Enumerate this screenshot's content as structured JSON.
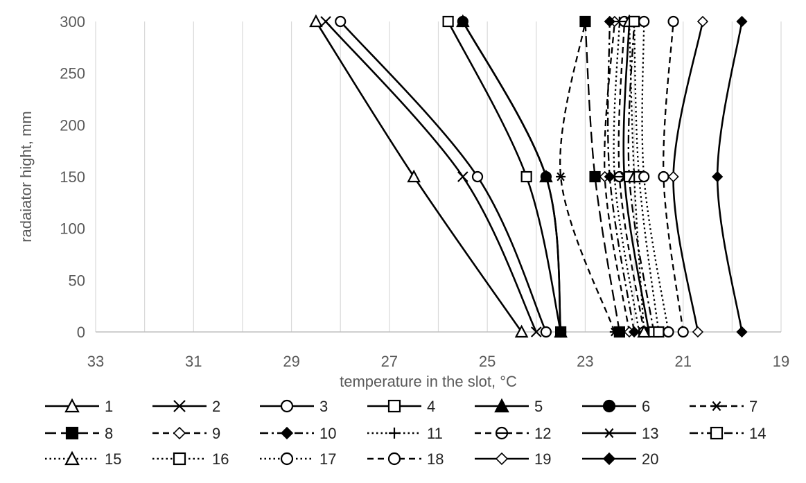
{
  "chart_data": {
    "type": "line",
    "xlabel": "temperature in the slot, °C",
    "ylabel": "radaiator hight, mm",
    "x_axis_reversed": true,
    "xlim": [
      19,
      33
    ],
    "ylim": [
      0,
      300
    ],
    "x_ticks": [
      "33",
      "31",
      "29",
      "27",
      "25",
      "23",
      "21",
      "19"
    ],
    "y_ticks": [
      "0",
      "50",
      "100",
      "150",
      "200",
      "250",
      "300"
    ],
    "grid": "vertical",
    "legend_position": "bottom",
    "y": [
      0,
      150,
      300
    ],
    "series": [
      {
        "name": "1",
        "x": [
          24.3,
          26.5,
          28.5
        ],
        "marker": "triangle-open",
        "line": "solid"
      },
      {
        "name": "2",
        "x": [
          24.0,
          25.5,
          28.3
        ],
        "marker": "x",
        "line": "solid"
      },
      {
        "name": "3",
        "x": [
          23.8,
          25.2,
          28.0
        ],
        "marker": "circle-open",
        "line": "solid"
      },
      {
        "name": "4",
        "x": [
          23.5,
          24.2,
          25.8
        ],
        "marker": "square-open",
        "line": "solid"
      },
      {
        "name": "5",
        "x": [
          23.5,
          23.8,
          25.5
        ],
        "marker": "triangle-filled",
        "line": "solid"
      },
      {
        "name": "6",
        "x": [
          23.5,
          23.8,
          25.5
        ],
        "marker": "circle-filled",
        "line": "solid"
      },
      {
        "name": "7",
        "x": [
          22.4,
          23.5,
          23.0
        ],
        "marker": "asterisk",
        "line": "dashed"
      },
      {
        "name": "8",
        "x": [
          22.3,
          22.8,
          23.0
        ],
        "marker": "square-filled",
        "line": "longdash"
      },
      {
        "name": "9",
        "x": [
          22.1,
          22.6,
          22.4
        ],
        "marker": "diamond-open",
        "line": "dashed"
      },
      {
        "name": "10",
        "x": [
          22.0,
          22.5,
          22.5
        ],
        "marker": "diamond-filled",
        "line": "dashdot"
      },
      {
        "name": "11",
        "x": [
          21.9,
          22.4,
          22.3
        ],
        "marker": "plus",
        "line": "dotted"
      },
      {
        "name": "12",
        "x": [
          21.8,
          22.3,
          22.2
        ],
        "marker": "circle-minus",
        "line": "dashed"
      },
      {
        "name": "13",
        "x": [
          21.7,
          22.2,
          22.1
        ],
        "marker": "asterisk",
        "line": "solid"
      },
      {
        "name": "14",
        "x": [
          21.6,
          22.1,
          22.0
        ],
        "marker": "square-open",
        "line": "dashdot"
      },
      {
        "name": "15",
        "x": [
          21.8,
          22.0,
          22.1
        ],
        "marker": "triangle-open",
        "line": "dotted"
      },
      {
        "name": "16",
        "x": [
          21.5,
          21.9,
          22.0
        ],
        "marker": "square-open",
        "line": "dotted"
      },
      {
        "name": "17",
        "x": [
          21.3,
          21.8,
          21.8
        ],
        "marker": "circle-open",
        "line": "dotted"
      },
      {
        "name": "18",
        "x": [
          21.0,
          21.4,
          21.2
        ],
        "marker": "circle-open",
        "line": "dashed"
      },
      {
        "name": "19",
        "x": [
          20.7,
          21.2,
          20.6
        ],
        "marker": "diamond-open",
        "line": "solid"
      },
      {
        "name": "20",
        "x": [
          19.8,
          20.3,
          19.8
        ],
        "marker": "diamond-filled",
        "line": "solid"
      }
    ]
  }
}
